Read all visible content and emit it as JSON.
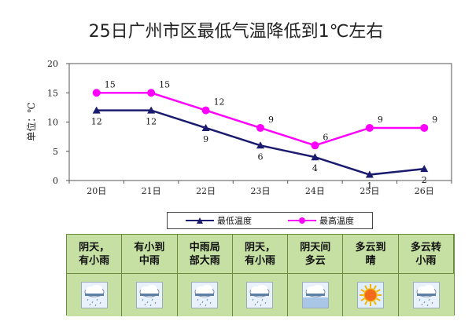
{
  "chart_data": {
    "type": "line",
    "title": "25日广州市区最低气温降低到1℃左右",
    "ylabel": "单位：℃",
    "categories": [
      "20日",
      "21日",
      "22日",
      "23日",
      "24日",
      "25日",
      "26日"
    ],
    "ylim": [
      0,
      20
    ],
    "yticks": [
      0,
      5,
      10,
      15,
      20
    ],
    "grid": false,
    "legend_position": "bottom",
    "series": [
      {
        "name": "最低温度",
        "color": "#1a1a6e",
        "marker": "triangle",
        "values": [
          12,
          12,
          9,
          6,
          4,
          1,
          2
        ]
      },
      {
        "name": "最高温度",
        "color": "#ff00ff",
        "marker": "circle",
        "values": [
          15,
          15,
          12,
          9,
          6,
          9,
          9
        ]
      }
    ]
  },
  "forecast": [
    {
      "text": "阴天，\n有小雨",
      "icon": "cloud-rain-icon"
    },
    {
      "text": "有小到\n中雨",
      "icon": "cloud-rain-icon"
    },
    {
      "text": "中雨局\n部大雨",
      "icon": "cloud-rain-icon"
    },
    {
      "text": "阴天，\n有小雨",
      "icon": "cloud-rain-icon"
    },
    {
      "text": "阴天间\n多云",
      "icon": "cloud-icon"
    },
    {
      "text": "多云到\n晴",
      "icon": "sun-icon"
    },
    {
      "text": "多云转\n小雨",
      "icon": "cloud-rain-icon"
    }
  ]
}
